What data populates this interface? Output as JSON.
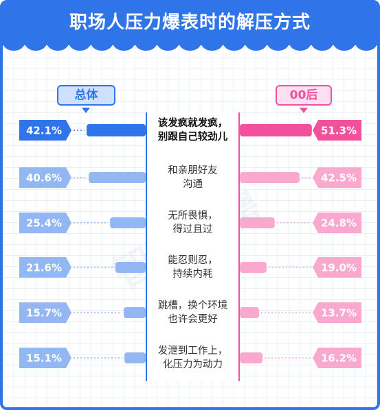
{
  "title": "职场人压力爆表时的解压方式",
  "watermark": "智联招聘",
  "legend": {
    "left": "总体",
    "right": "00后"
  },
  "colors": {
    "blue_strong": "#2f74e9",
    "blue_light": "#93b7f3",
    "pink_strong": "#f0509c",
    "pink_light": "#f8a9cd"
  },
  "chart_data": {
    "type": "bar",
    "categories": [
      "该发疯就发疯，别跟自己较劲儿",
      "和亲朋好友沟通",
      "无所畏惧，得过且过",
      "能忍则忍，持续内耗",
      "跳槽，换个环境也许会更好",
      "发泄到工作上，化压力为动力"
    ],
    "category_lines": [
      [
        "该发疯就发疯，",
        "别跟自己较劲儿"
      ],
      [
        "和亲朋好友",
        "沟通"
      ],
      [
        "无所畏惧，",
        "得过且过"
      ],
      [
        "能忍则忍，",
        "持续内耗"
      ],
      [
        "跳槽，换个环境",
        "也许会更好"
      ],
      [
        "发泄到工作上，",
        "化压力为动力"
      ]
    ],
    "series": [
      {
        "name": "总体",
        "values": [
          42.1,
          40.6,
          25.4,
          21.6,
          15.7,
          15.1
        ],
        "labels": [
          "42.1%",
          "40.6%",
          "25.4%",
          "21.6%",
          "15.7%",
          "15.1%"
        ]
      },
      {
        "name": "00后",
        "values": [
          51.3,
          42.5,
          24.8,
          19.0,
          13.7,
          16.2
        ],
        "labels": [
          "51.3%",
          "42.5%",
          "24.8%",
          "19.0%",
          "13.7%",
          "16.2%"
        ]
      }
    ],
    "unit": "%"
  }
}
